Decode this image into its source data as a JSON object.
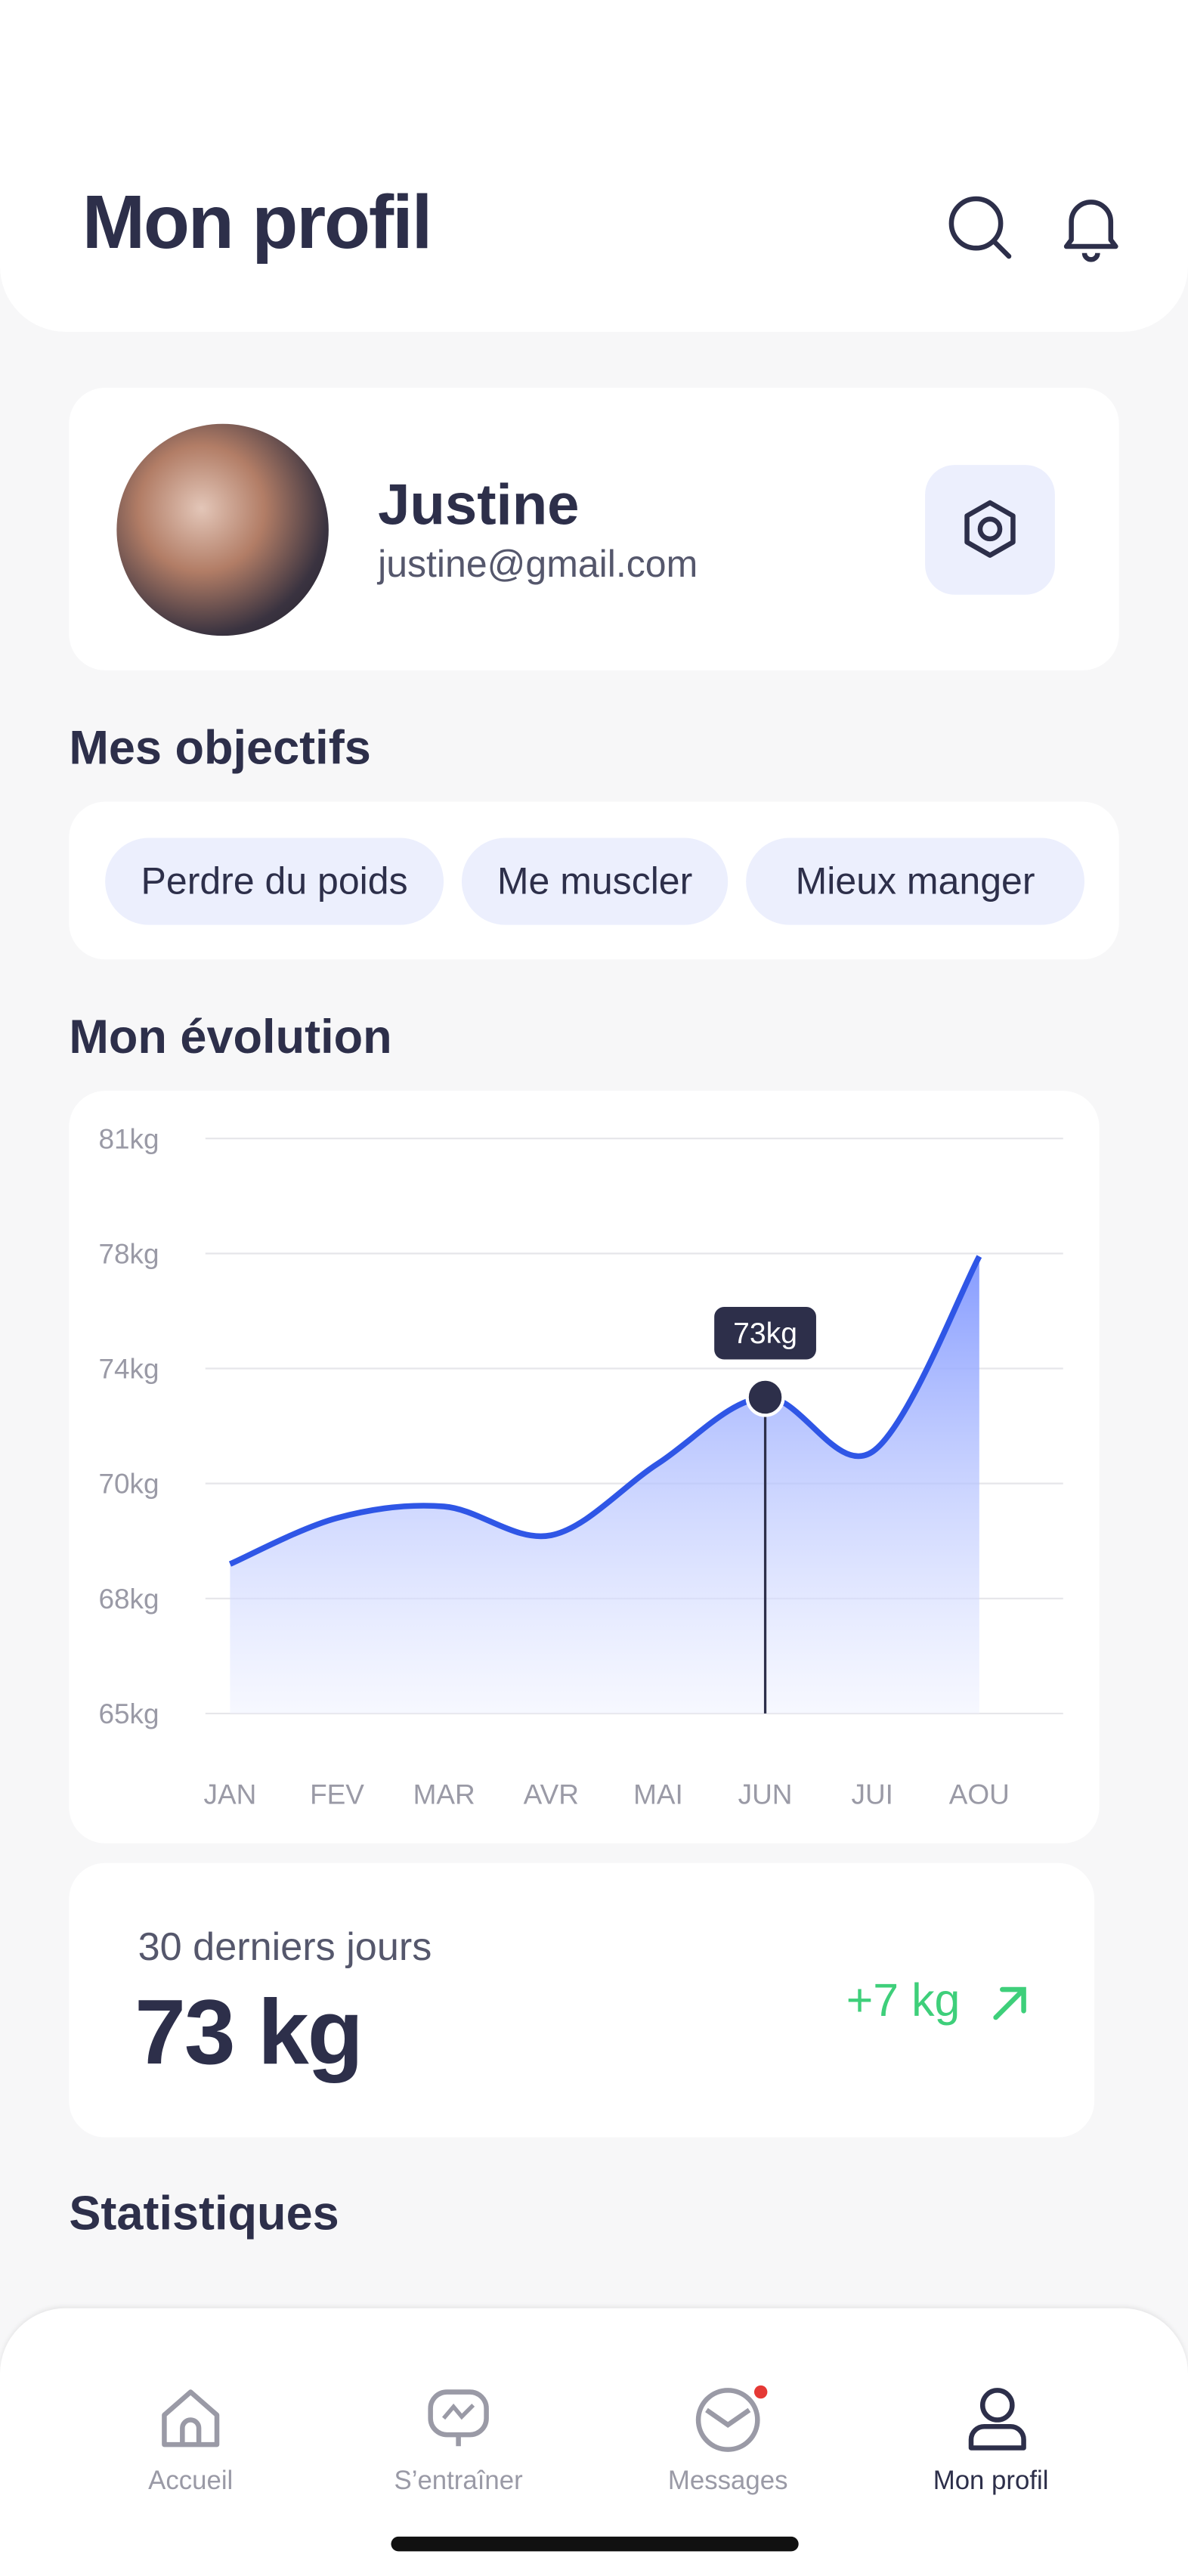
{
  "header": {
    "title": "Mon profil"
  },
  "profile": {
    "name": "Justine",
    "email": "justine@gmail.com"
  },
  "objectives": {
    "title": "Mes objectifs",
    "items": [
      "Perdre du poids",
      "Me muscler",
      "Mieux manger"
    ]
  },
  "evolution": {
    "title": "Mon évolution"
  },
  "chart_data": {
    "type": "line",
    "categories": [
      "JAN",
      "FEV",
      "MAR",
      "AVR",
      "MAI",
      "JUN",
      "JUI",
      "AOU"
    ],
    "values": [
      68.6,
      69.4,
      69.6,
      69.1,
      70.7,
      73,
      71.1,
      77.9
    ],
    "value_labels": [
      null,
      null,
      null,
      null,
      null,
      "73kg",
      null,
      null
    ],
    "color": "#2f56e6",
    "ylim": [
      65,
      81
    ],
    "yticks": [
      {
        "value": 65,
        "label": "65kg"
      },
      {
        "value": 68,
        "label": "68kg"
      },
      {
        "value": 70,
        "label": "70kg"
      },
      {
        "value": 74,
        "label": "74kg"
      },
      {
        "value": 78,
        "label": "78kg"
      },
      {
        "value": 81,
        "label": "81kg"
      }
    ],
    "grid": true
  },
  "summary": {
    "period": "30 derniers jours",
    "value": "73 kg",
    "change": "+7 kg"
  },
  "statistics": {
    "title": "Statistiques"
  },
  "nav": {
    "items": [
      "Accueil",
      "S’entraîner",
      "Messages",
      "Mon profil"
    ]
  }
}
